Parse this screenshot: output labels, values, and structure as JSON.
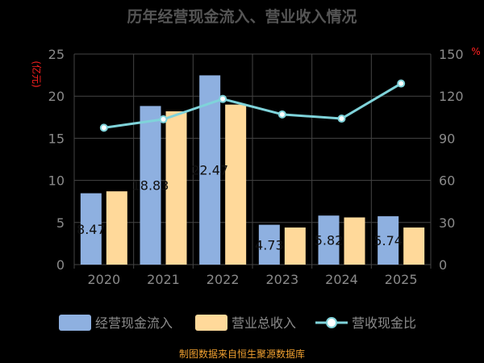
{
  "chart_data": {
    "type": "bar",
    "title": "历年经营现金流入、营业收入情况",
    "categories": [
      "2020",
      "2021",
      "2022",
      "2023",
      "2024",
      "2025"
    ],
    "left_axis": {
      "unit": "(亿元)",
      "ylim": [
        0,
        25
      ],
      "ticks": [
        0,
        5,
        10,
        15,
        20,
        25
      ]
    },
    "right_axis": {
      "unit": "%",
      "ylim": [
        0,
        150
      ],
      "ticks": [
        0,
        30,
        60,
        90,
        120,
        150
      ]
    },
    "series": [
      {
        "name": "经营现金流入",
        "type": "bar",
        "axis": "left",
        "color": "#8EB0E0",
        "values": [
          8.47,
          18.83,
          22.47,
          4.73,
          5.82,
          5.74
        ]
      },
      {
        "name": "营业总收入",
        "type": "bar",
        "axis": "left",
        "color": "#FFD99A",
        "values": [
          8.7,
          18.2,
          19.0,
          4.4,
          5.6,
          4.4
        ]
      },
      {
        "name": "营收现金比",
        "type": "line",
        "axis": "right",
        "color": "#7FD3DA",
        "values": [
          97.5,
          103.5,
          118.0,
          107.0,
          104.0,
          129.0
        ]
      }
    ],
    "data_labels": [
      "8.47",
      "18.83",
      "22.47",
      "4.73",
      "5.82",
      "5.74"
    ],
    "legend": {
      "position": "bottom",
      "items": [
        "经营现金流入",
        "营业总收入",
        "营收现金比"
      ]
    },
    "grid": true
  },
  "footer": {
    "source": "制图数据来自恒生聚源数据库"
  },
  "colors": {
    "background": "#000000",
    "grid": "#444444",
    "axis_text": "#8a8a8a",
    "title": "#555555",
    "unit": "#ff2020",
    "source": "#f0a030",
    "label": "#111111"
  }
}
